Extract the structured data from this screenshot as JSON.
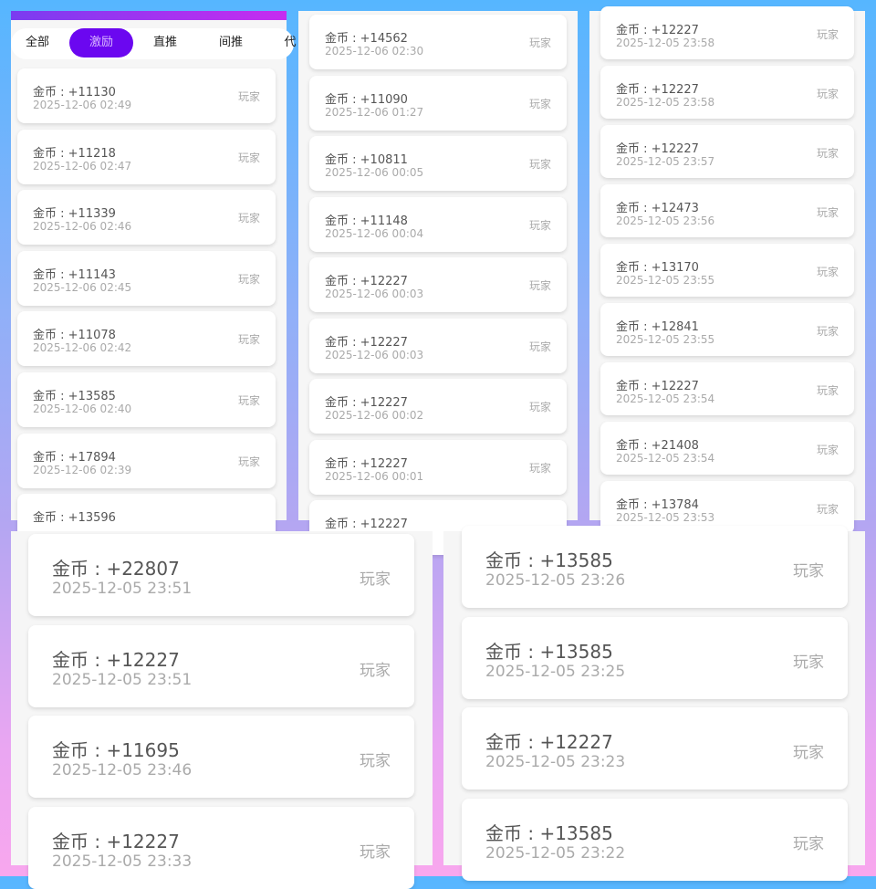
{
  "tabs": [
    {
      "label": "全部"
    },
    {
      "label": "激励",
      "active": true
    },
    {
      "label": "直推"
    },
    {
      "label": "间推"
    },
    {
      "label": "代"
    }
  ],
  "colors": {
    "accent": "#6b07f0",
    "header_gradient": [
      "#7a3cf0",
      "#c62cf0"
    ]
  },
  "amount_prefix": "金币 : ",
  "panels": [
    {
      "records": [
        {
          "amount": "+11130",
          "time": "2025-12-06 02:49",
          "role": "玩家"
        },
        {
          "amount": "+11218",
          "time": "2025-12-06 02:47",
          "role": "玩家"
        },
        {
          "amount": "+11339",
          "time": "2025-12-06 02:46",
          "role": "玩家"
        },
        {
          "amount": "+11143",
          "time": "2025-12-06 02:45",
          "role": "玩家"
        },
        {
          "amount": "+11078",
          "time": "2025-12-06 02:42",
          "role": "玩家"
        },
        {
          "amount": "+13585",
          "time": "2025-12-06 02:40",
          "role": "玩家"
        },
        {
          "amount": "+17894",
          "time": "2025-12-06 02:39",
          "role": "玩家"
        },
        {
          "amount": "+13596",
          "time": "",
          "role": ""
        }
      ]
    },
    {
      "records": [
        {
          "amount": "+14562",
          "time": "2025-12-06 02:30",
          "role": "玩家"
        },
        {
          "amount": "+11090",
          "time": "2025-12-06 01:27",
          "role": "玩家"
        },
        {
          "amount": "+10811",
          "time": "2025-12-06 00:05",
          "role": "玩家"
        },
        {
          "amount": "+11148",
          "time": "2025-12-06 00:04",
          "role": "玩家"
        },
        {
          "amount": "+12227",
          "time": "2025-12-06 00:03",
          "role": "玩家"
        },
        {
          "amount": "+12227",
          "time": "2025-12-06 00:03",
          "role": "玩家"
        },
        {
          "amount": "+12227",
          "time": "2025-12-06 00:02",
          "role": "玩家"
        },
        {
          "amount": "+12227",
          "time": "2025-12-06 00:01",
          "role": "玩家"
        },
        {
          "amount": "+12227",
          "time": "",
          "role": ""
        }
      ]
    },
    {
      "records": [
        {
          "amount": "+12227",
          "time": "2025-12-05 23:58",
          "role": "玩家"
        },
        {
          "amount": "+12227",
          "time": "2025-12-05 23:58",
          "role": "玩家"
        },
        {
          "amount": "+12227",
          "time": "2025-12-05 23:57",
          "role": "玩家"
        },
        {
          "amount": "+12473",
          "time": "2025-12-05 23:56",
          "role": "玩家"
        },
        {
          "amount": "+13170",
          "time": "2025-12-05 23:55",
          "role": "玩家"
        },
        {
          "amount": "+12841",
          "time": "2025-12-05 23:55",
          "role": "玩家"
        },
        {
          "amount": "+12227",
          "time": "2025-12-05 23:54",
          "role": "玩家"
        },
        {
          "amount": "+21408",
          "time": "2025-12-05 23:54",
          "role": "玩家"
        },
        {
          "amount": "+13784",
          "time": "2025-12-05 23:53",
          "role": "玩家"
        }
      ]
    },
    {
      "records": [
        {
          "amount": "+22807",
          "time": "2025-12-05 23:51",
          "role": "玩家"
        },
        {
          "amount": "+12227",
          "time": "2025-12-05 23:51",
          "role": "玩家"
        },
        {
          "amount": "+11695",
          "time": "2025-12-05 23:46",
          "role": "玩家"
        },
        {
          "amount": "+12227",
          "time": "2025-12-05 23:33",
          "role": "玩家"
        }
      ]
    },
    {
      "records": [
        {
          "amount": "+13585",
          "time": "2025-12-05 23:26",
          "role": "玩家"
        },
        {
          "amount": "+13585",
          "time": "2025-12-05 23:25",
          "role": "玩家"
        },
        {
          "amount": "+12227",
          "time": "2025-12-05 23:23",
          "role": "玩家"
        },
        {
          "amount": "+13585",
          "time": "2025-12-05 23:22",
          "role": "玩家"
        }
      ]
    }
  ]
}
